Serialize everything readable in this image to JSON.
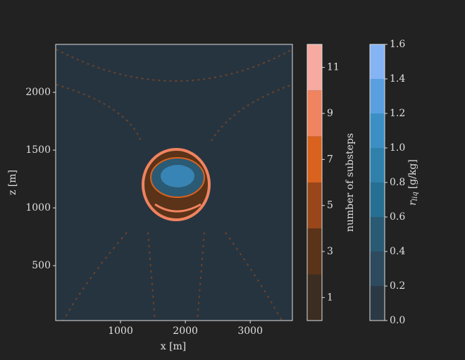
{
  "chart_data": {
    "type": "contour",
    "xlabel": "x [m]",
    "ylabel": "z [m]",
    "xlim": [
      0,
      3650
    ],
    "ylim": [
      25,
      2415
    ],
    "xticks": [
      1000,
      2000,
      3000
    ],
    "yticks": [
      500,
      1000,
      1500,
      2000
    ],
    "background": "#263440",
    "colorbars": [
      {
        "label": "number of substeps",
        "levels": [
          0,
          2,
          4,
          6,
          8,
          10,
          12
        ],
        "colors": [
          "#3b2d22",
          "#5a3318",
          "#99461a",
          "#d9621e",
          "#f08360",
          "#f6aaa0"
        ],
        "lim": [
          0,
          12
        ],
        "ticks": [
          1,
          3,
          5,
          7,
          9,
          11
        ]
      },
      {
        "label": {
          "symbol": "r",
          "subscript": "liq",
          "unit": "[g/kg]"
        },
        "levels": [
          0,
          0.2,
          0.4,
          0.6,
          0.8,
          1.0,
          1.2,
          1.4,
          1.6
        ],
        "colors": [
          "#2b3945",
          "#2d4a5e",
          "#2b5a74",
          "#276f92",
          "#2f81ac",
          "#3c8fc4",
          "#5a9fe0",
          "#84b4f4"
        ],
        "lim": [
          0,
          1.6
        ],
        "ticks": [
          {
            "value": 0,
            "label": "0.0"
          },
          0.2,
          0.4,
          0.6,
          0.8,
          {
            "value": 1,
            "label": "1.0"
          },
          1.2,
          1.4,
          1.6
        ]
      }
    ]
  }
}
